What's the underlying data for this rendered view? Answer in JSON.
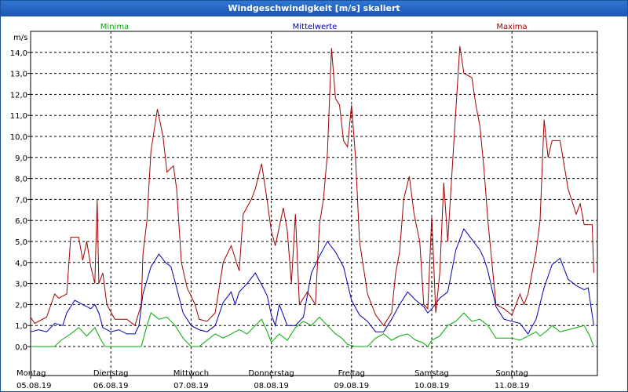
{
  "window": {
    "title": "Windgeschwindigkeit [m/s] skaliert"
  },
  "colors": {
    "min": "#00aa00",
    "mean": "#0000b0",
    "max": "#a00000",
    "grid": "#000000"
  },
  "chart_data": {
    "type": "line",
    "title": "Windgeschwindigkeit [m/s] skaliert",
    "ylabel": "m/s",
    "xlabel": "",
    "ylim": [
      0,
      15
    ],
    "y_ticks": [
      "0,0",
      "1,0",
      "2,0",
      "3,0",
      "4,0",
      "5,0",
      "6,0",
      "7,0",
      "8,0",
      "9,0",
      "10,0",
      "11,0",
      "12,0",
      "13,0",
      "14,0"
    ],
    "x_range_days": [
      0,
      7.03
    ],
    "grid": true,
    "legend_position": "top",
    "day_labels": [
      {
        "day": "Montag",
        "date": "05.08.19"
      },
      {
        "day": "Dienstag",
        "date": "06.08.19"
      },
      {
        "day": "Mittwoch",
        "date": "07.08.19"
      },
      {
        "day": "Donnerstag",
        "date": "08.08.19"
      },
      {
        "day": "Freitag",
        "date": "09.08.19"
      },
      {
        "day": "Samstag",
        "date": "10.08.19"
      },
      {
        "day": "Sonntag",
        "date": "11.08.19"
      }
    ],
    "series": [
      {
        "name": "Minima",
        "color": "#00aa00",
        "points": [
          [
            0,
            0
          ],
          [
            0.3,
            0
          ],
          [
            0.38,
            0.3
          ],
          [
            0.5,
            0.6
          ],
          [
            0.6,
            0.9
          ],
          [
            0.7,
            0.5
          ],
          [
            0.8,
            0.9
          ],
          [
            0.88,
            0.3
          ],
          [
            0.93,
            0
          ],
          [
            1.05,
            0
          ],
          [
            1.2,
            0
          ],
          [
            1.38,
            0
          ],
          [
            1.45,
            1.0
          ],
          [
            1.5,
            1.6
          ],
          [
            1.6,
            1.3
          ],
          [
            1.7,
            1.4
          ],
          [
            1.8,
            1.0
          ],
          [
            1.9,
            0.4
          ],
          [
            2.0,
            0
          ],
          [
            2.1,
            0
          ],
          [
            2.2,
            0.3
          ],
          [
            2.3,
            0.6
          ],
          [
            2.4,
            0.4
          ],
          [
            2.5,
            0.6
          ],
          [
            2.6,
            0.8
          ],
          [
            2.7,
            0.6
          ],
          [
            2.8,
            1.0
          ],
          [
            2.88,
            1.3
          ],
          [
            2.95,
            0.7
          ],
          [
            3.0,
            0.2
          ],
          [
            3.1,
            0.6
          ],
          [
            3.2,
            0.3
          ],
          [
            3.3,
            0.9
          ],
          [
            3.4,
            1.2
          ],
          [
            3.5,
            1.0
          ],
          [
            3.6,
            1.4
          ],
          [
            3.7,
            1.0
          ],
          [
            3.8,
            0.6
          ],
          [
            3.88,
            0.4
          ],
          [
            3.95,
            0.1
          ],
          [
            4.05,
            0
          ],
          [
            4.2,
            0
          ],
          [
            4.3,
            0.4
          ],
          [
            4.4,
            0.6
          ],
          [
            4.5,
            0.3
          ],
          [
            4.6,
            0.5
          ],
          [
            4.7,
            0.6
          ],
          [
            4.8,
            0.3
          ],
          [
            4.88,
            0.2
          ],
          [
            4.95,
            0
          ],
          [
            5.0,
            0.3
          ],
          [
            5.1,
            0.5
          ],
          [
            5.2,
            1.0
          ],
          [
            5.3,
            1.2
          ],
          [
            5.4,
            1.6
          ],
          [
            5.5,
            1.2
          ],
          [
            5.6,
            1.3
          ],
          [
            5.7,
            1.0
          ],
          [
            5.8,
            0.4
          ],
          [
            5.9,
            0.4
          ],
          [
            6.0,
            0.4
          ],
          [
            6.1,
            0.3
          ],
          [
            6.2,
            0.5
          ],
          [
            6.3,
            0.7
          ],
          [
            6.35,
            0.5
          ],
          [
            6.45,
            0.8
          ],
          [
            6.5,
            1.0
          ],
          [
            6.6,
            0.7
          ],
          [
            6.7,
            0.8
          ],
          [
            6.8,
            0.9
          ],
          [
            6.9,
            1.0
          ],
          [
            6.97,
            0.5
          ],
          [
            7.02,
            0
          ]
        ]
      },
      {
        "name": "Mittelwerte",
        "color": "#0000b0",
        "points": [
          [
            0,
            0.7
          ],
          [
            0.1,
            0.8
          ],
          [
            0.2,
            0.7
          ],
          [
            0.3,
            1.1
          ],
          [
            0.4,
            1.0
          ],
          [
            0.45,
            1.6
          ],
          [
            0.55,
            2.2
          ],
          [
            0.65,
            2.0
          ],
          [
            0.75,
            1.8
          ],
          [
            0.8,
            2.0
          ],
          [
            0.85,
            1.6
          ],
          [
            0.9,
            0.9
          ],
          [
            1.0,
            0.7
          ],
          [
            1.1,
            0.8
          ],
          [
            1.2,
            0.6
          ],
          [
            1.3,
            0.6
          ],
          [
            1.35,
            1.0
          ],
          [
            1.4,
            2.5
          ],
          [
            1.5,
            3.8
          ],
          [
            1.6,
            4.4
          ],
          [
            1.68,
            4.0
          ],
          [
            1.75,
            3.8
          ],
          [
            1.82,
            2.8
          ],
          [
            1.9,
            1.6
          ],
          [
            2.0,
            1.0
          ],
          [
            2.1,
            0.8
          ],
          [
            2.2,
            0.7
          ],
          [
            2.3,
            1.0
          ],
          [
            2.4,
            2.1
          ],
          [
            2.5,
            2.6
          ],
          [
            2.55,
            2.0
          ],
          [
            2.6,
            2.6
          ],
          [
            2.7,
            3.0
          ],
          [
            2.8,
            3.5
          ],
          [
            2.9,
            2.8
          ],
          [
            2.95,
            2.4
          ],
          [
            3.0,
            1.5
          ],
          [
            3.05,
            1.0
          ],
          [
            3.1,
            2.0
          ],
          [
            3.15,
            1.5
          ],
          [
            3.2,
            1.0
          ],
          [
            3.3,
            1.0
          ],
          [
            3.4,
            1.4
          ],
          [
            3.5,
            3.5
          ],
          [
            3.6,
            4.3
          ],
          [
            3.7,
            5.0
          ],
          [
            3.8,
            4.5
          ],
          [
            3.9,
            3.8
          ],
          [
            4.0,
            2.2
          ],
          [
            4.1,
            1.5
          ],
          [
            4.2,
            1.2
          ],
          [
            4.3,
            0.7
          ],
          [
            4.4,
            0.7
          ],
          [
            4.5,
            1.3
          ],
          [
            4.6,
            2.0
          ],
          [
            4.7,
            2.6
          ],
          [
            4.8,
            2.2
          ],
          [
            4.9,
            1.9
          ],
          [
            4.95,
            1.6
          ],
          [
            5.0,
            1.8
          ],
          [
            5.1,
            2.3
          ],
          [
            5.2,
            2.6
          ],
          [
            5.3,
            4.6
          ],
          [
            5.4,
            5.6
          ],
          [
            5.5,
            5.1
          ],
          [
            5.6,
            4.6
          ],
          [
            5.65,
            4.2
          ],
          [
            5.7,
            3.6
          ],
          [
            5.8,
            1.9
          ],
          [
            5.9,
            1.3
          ],
          [
            6.0,
            1.2
          ],
          [
            6.1,
            1.1
          ],
          [
            6.2,
            0.6
          ],
          [
            6.3,
            1.3
          ],
          [
            6.4,
            2.8
          ],
          [
            6.5,
            3.9
          ],
          [
            6.6,
            4.2
          ],
          [
            6.7,
            3.2
          ],
          [
            6.8,
            2.9
          ],
          [
            6.9,
            2.7
          ],
          [
            6.95,
            2.8
          ],
          [
            7.02,
            1.0
          ]
        ]
      },
      {
        "name": "Maxima",
        "color": "#a00000",
        "points": [
          [
            0,
            1.4
          ],
          [
            0.05,
            1.1
          ],
          [
            0.2,
            1.4
          ],
          [
            0.3,
            2.5
          ],
          [
            0.35,
            2.3
          ],
          [
            0.45,
            2.5
          ],
          [
            0.5,
            5.2
          ],
          [
            0.6,
            5.2
          ],
          [
            0.65,
            4.1
          ],
          [
            0.7,
            5.0
          ],
          [
            0.75,
            3.8
          ],
          [
            0.8,
            3.0
          ],
          [
            0.83,
            7.0
          ],
          [
            0.85,
            3.0
          ],
          [
            0.9,
            3.5
          ],
          [
            0.95,
            2.0
          ],
          [
            1.05,
            1.3
          ],
          [
            1.2,
            1.3
          ],
          [
            1.3,
            1.0
          ],
          [
            1.38,
            2.0
          ],
          [
            1.4,
            4.4
          ],
          [
            1.45,
            6.0
          ],
          [
            1.5,
            9.3
          ],
          [
            1.58,
            11.3
          ],
          [
            1.65,
            10.0
          ],
          [
            1.7,
            8.3
          ],
          [
            1.78,
            8.6
          ],
          [
            1.82,
            7.5
          ],
          [
            1.88,
            4.0
          ],
          [
            1.95,
            2.8
          ],
          [
            2.05,
            2.0
          ],
          [
            2.1,
            1.3
          ],
          [
            2.2,
            1.2
          ],
          [
            2.3,
            1.6
          ],
          [
            2.35,
            2.8
          ],
          [
            2.4,
            4.0
          ],
          [
            2.5,
            4.8
          ],
          [
            2.6,
            3.6
          ],
          [
            2.65,
            6.3
          ],
          [
            2.75,
            7.0
          ],
          [
            2.8,
            7.5
          ],
          [
            2.88,
            8.7
          ],
          [
            2.95,
            6.9
          ],
          [
            3.0,
            5.5
          ],
          [
            3.05,
            4.8
          ],
          [
            3.15,
            6.6
          ],
          [
            3.2,
            5.5
          ],
          [
            3.25,
            3.0
          ],
          [
            3.3,
            6.3
          ],
          [
            3.35,
            2.0
          ],
          [
            3.45,
            2.6
          ],
          [
            3.55,
            2.0
          ],
          [
            3.6,
            5.8
          ],
          [
            3.65,
            7.0
          ],
          [
            3.7,
            9.2
          ],
          [
            3.75,
            14.2
          ],
          [
            3.8,
            11.8
          ],
          [
            3.85,
            11.5
          ],
          [
            3.9,
            9.8
          ],
          [
            3.95,
            9.5
          ],
          [
            4.0,
            11.5
          ],
          [
            4.05,
            9.0
          ],
          [
            4.1,
            5.0
          ],
          [
            4.2,
            2.5
          ],
          [
            4.3,
            1.5
          ],
          [
            4.4,
            1.0
          ],
          [
            4.5,
            1.6
          ],
          [
            4.55,
            3.5
          ],
          [
            4.6,
            4.5
          ],
          [
            4.65,
            7.0
          ],
          [
            4.72,
            8.1
          ],
          [
            4.78,
            6.3
          ],
          [
            4.85,
            5.0
          ],
          [
            4.9,
            2.0
          ],
          [
            4.95,
            1.8
          ],
          [
            5.0,
            6.2
          ],
          [
            5.05,
            1.6
          ],
          [
            5.1,
            3.5
          ],
          [
            5.15,
            7.8
          ],
          [
            5.2,
            5.0
          ],
          [
            5.28,
            10.0
          ],
          [
            5.35,
            14.3
          ],
          [
            5.4,
            13.0
          ],
          [
            5.5,
            12.8
          ],
          [
            5.55,
            11.5
          ],
          [
            5.6,
            10.5
          ],
          [
            5.65,
            8.5
          ],
          [
            5.7,
            6.0
          ],
          [
            5.8,
            2.0
          ],
          [
            5.9,
            1.8
          ],
          [
            6.0,
            1.5
          ],
          [
            6.1,
            2.5
          ],
          [
            6.15,
            2.0
          ],
          [
            6.2,
            2.5
          ],
          [
            6.3,
            4.5
          ],
          [
            6.35,
            6.0
          ],
          [
            6.4,
            10.8
          ],
          [
            6.45,
            9.0
          ],
          [
            6.5,
            9.8
          ],
          [
            6.6,
            9.8
          ],
          [
            6.7,
            7.5
          ],
          [
            6.8,
            6.3
          ],
          [
            6.85,
            6.8
          ],
          [
            6.9,
            5.8
          ],
          [
            7.0,
            5.8
          ],
          [
            7.02,
            3.5
          ]
        ]
      }
    ]
  }
}
